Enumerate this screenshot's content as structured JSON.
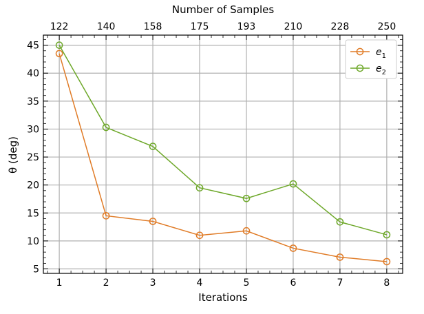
{
  "chart_data": {
    "type": "line",
    "x": [
      1,
      2,
      3,
      4,
      5,
      6,
      7,
      8
    ],
    "xlabel": "Iterations",
    "x_top": {
      "label": "Number of Samples",
      "tick_labels": [
        "122",
        "140",
        "158",
        "175",
        "193",
        "210",
        "228",
        "250"
      ]
    },
    "ylabel": "θ (deg)",
    "ylim": [
      4.2,
      46.8
    ],
    "xlim": [
      0.66,
      8.34
    ],
    "yticks": [
      5,
      10,
      15,
      20,
      25,
      30,
      35,
      40,
      45
    ],
    "grid": true,
    "legend": "top-right",
    "series": [
      {
        "name": "e",
        "subscript": "1",
        "color": "#e07b26",
        "values": [
          43.5,
          14.5,
          13.5,
          11.0,
          11.8,
          8.7,
          7.1,
          6.3
        ]
      },
      {
        "name": "e",
        "subscript": "2",
        "color": "#6ea82a",
        "values": [
          45.0,
          30.3,
          26.9,
          19.5,
          17.6,
          20.2,
          13.4,
          11.1
        ]
      }
    ]
  }
}
